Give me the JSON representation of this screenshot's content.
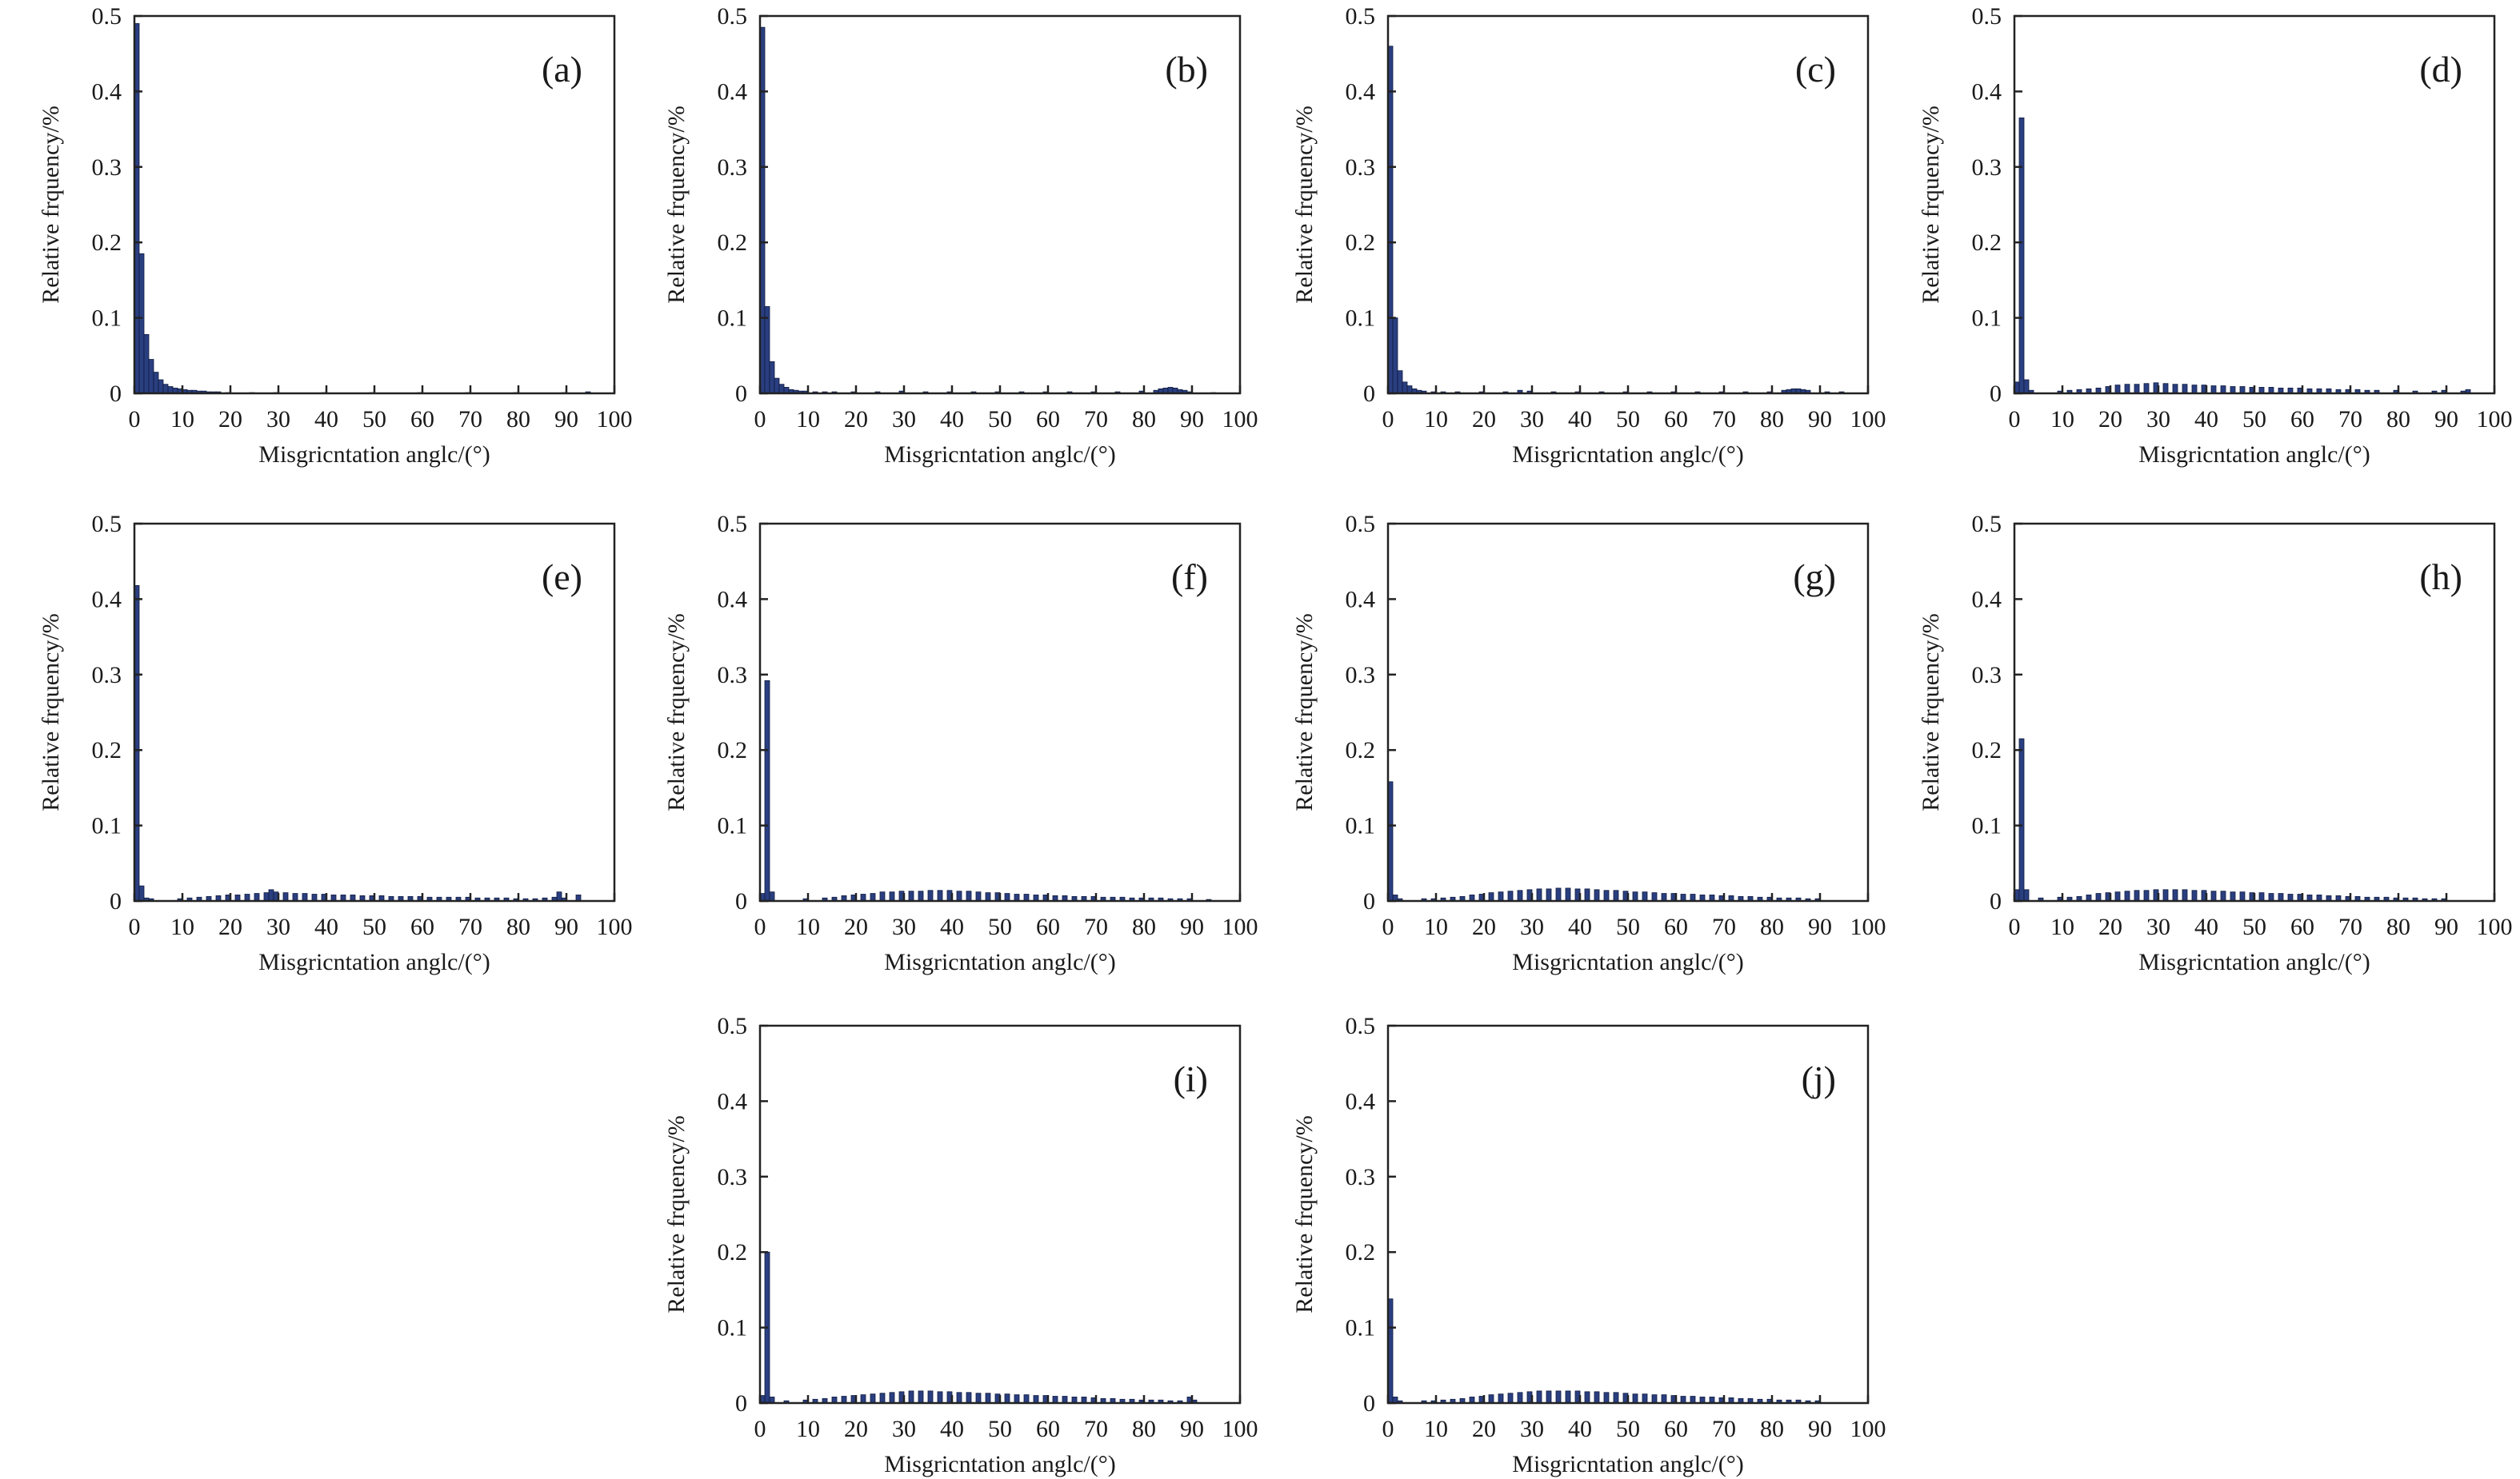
{
  "figure": {
    "bar_color": "#2a3f80",
    "bar_edge_color": "#0f1a3d"
  },
  "chart_data": [
    {
      "type": "bar",
      "panel": "(a)",
      "xlabel": "Misgricntation anglc/(°)",
      "ylabel": "Relative frquency/%",
      "xlim": [
        0,
        100
      ],
      "ylim": [
        0,
        0.5
      ],
      "xticks": [
        "0",
        "10",
        "20",
        "30",
        "40",
        "50",
        "60",
        "70",
        "80",
        "90",
        "100"
      ],
      "yticks": [
        "0",
        "0.1",
        "0.2",
        "0.3",
        "0.4",
        "0.5"
      ],
      "bin_width": 1,
      "x": [
        1,
        2,
        3,
        4,
        5,
        6,
        7,
        8,
        9,
        10,
        11,
        12,
        13,
        14,
        15,
        16,
        17,
        18,
        20,
        25,
        30,
        40,
        50,
        60,
        70,
        80,
        90,
        95
      ],
      "values": [
        0.49,
        0.185,
        0.078,
        0.045,
        0.028,
        0.018,
        0.012,
        0.009,
        0.007,
        0.006,
        0.005,
        0.004,
        0.004,
        0.003,
        0.003,
        0.002,
        0.002,
        0.002,
        0.001,
        0.001,
        0.001,
        0.001,
        0.001,
        0.001,
        0.001,
        0.001,
        0.001,
        0.002
      ]
    },
    {
      "type": "bar",
      "panel": "(b)",
      "xlabel": "Misgricntation anglc/(°)",
      "ylabel": "Relative frquency/%",
      "xlim": [
        0,
        100
      ],
      "ylim": [
        0,
        0.5
      ],
      "xticks": [
        "0",
        "10",
        "20",
        "30",
        "40",
        "50",
        "60",
        "70",
        "80",
        "90",
        "100"
      ],
      "yticks": [
        "0",
        "0.1",
        "0.2",
        "0.3",
        "0.4",
        "0.5"
      ],
      "bin_width": 1,
      "x": [
        1,
        2,
        3,
        4,
        5,
        6,
        7,
        8,
        9,
        10,
        12,
        14,
        16,
        20,
        25,
        30,
        35,
        40,
        45,
        50,
        55,
        60,
        65,
        70,
        75,
        80,
        83,
        84,
        85,
        86,
        87,
        88,
        89,
        90,
        95
      ],
      "values": [
        0.485,
        0.115,
        0.042,
        0.02,
        0.012,
        0.008,
        0.005,
        0.004,
        0.003,
        0.003,
        0.002,
        0.002,
        0.002,
        0.002,
        0.002,
        0.003,
        0.002,
        0.002,
        0.002,
        0.002,
        0.002,
        0.002,
        0.002,
        0.002,
        0.002,
        0.003,
        0.004,
        0.006,
        0.007,
        0.008,
        0.007,
        0.005,
        0.004,
        0.002,
        0.001
      ]
    },
    {
      "type": "bar",
      "panel": "(c)",
      "xlabel": "Misgricntation anglc/(°)",
      "ylabel": "Relative frquency/%",
      "xlim": [
        0,
        100
      ],
      "ylim": [
        0,
        0.5
      ],
      "xticks": [
        "0",
        "10",
        "20",
        "30",
        "40",
        "50",
        "60",
        "70",
        "80",
        "90",
        "100"
      ],
      "yticks": [
        "0",
        "0.1",
        "0.2",
        "0.3",
        "0.4",
        "0.5"
      ],
      "bin_width": 1,
      "x": [
        1,
        2,
        3,
        4,
        5,
        6,
        7,
        8,
        10,
        12,
        15,
        20,
        25,
        28,
        30,
        35,
        40,
        45,
        50,
        55,
        60,
        65,
        70,
        75,
        80,
        83,
        84,
        85,
        86,
        87,
        88,
        92,
        95
      ],
      "values": [
        0.46,
        0.1,
        0.03,
        0.015,
        0.01,
        0.006,
        0.004,
        0.003,
        0.002,
        0.002,
        0.002,
        0.002,
        0.002,
        0.004,
        0.003,
        0.002,
        0.002,
        0.002,
        0.002,
        0.002,
        0.002,
        0.002,
        0.002,
        0.002,
        0.002,
        0.004,
        0.005,
        0.006,
        0.006,
        0.005,
        0.004,
        0.002,
        0.002
      ]
    },
    {
      "type": "bar",
      "panel": "(d)",
      "xlabel": "Misgricntation anglc/(°)",
      "ylabel": "Relative frquency/%",
      "xlim": [
        0,
        100
      ],
      "ylim": [
        0,
        0.5
      ],
      "xticks": [
        "0",
        "10",
        "20",
        "30",
        "40",
        "50",
        "60",
        "70",
        "80",
        "90",
        "100"
      ],
      "yticks": [
        "0",
        "0.1",
        "0.2",
        "0.3",
        "0.4",
        "0.5"
      ],
      "bin_width": 1,
      "x": [
        1,
        2,
        3,
        4,
        10,
        12,
        14,
        16,
        18,
        20,
        22,
        24,
        26,
        28,
        30,
        32,
        34,
        36,
        38,
        40,
        42,
        44,
        46,
        48,
        50,
        52,
        54,
        56,
        58,
        60,
        62,
        64,
        66,
        68,
        70,
        72,
        74,
        76,
        80,
        84,
        88,
        90,
        94,
        95
      ],
      "values": [
        0.015,
        0.365,
        0.018,
        0.004,
        0.003,
        0.004,
        0.005,
        0.006,
        0.007,
        0.009,
        0.011,
        0.012,
        0.012,
        0.013,
        0.014,
        0.013,
        0.012,
        0.012,
        0.011,
        0.011,
        0.01,
        0.01,
        0.009,
        0.009,
        0.008,
        0.008,
        0.008,
        0.007,
        0.007,
        0.007,
        0.006,
        0.006,
        0.006,
        0.005,
        0.005,
        0.005,
        0.004,
        0.004,
        0.004,
        0.003,
        0.003,
        0.004,
        0.003,
        0.005
      ]
    },
    {
      "type": "bar",
      "panel": "(e)",
      "xlabel": "Misgricntation anglc/(°)",
      "ylabel": "Relative frquency/%",
      "xlim": [
        0,
        100
      ],
      "ylim": [
        0,
        0.5
      ],
      "xticks": [
        "0",
        "10",
        "20",
        "30",
        "40",
        "50",
        "60",
        "70",
        "80",
        "90",
        "100"
      ],
      "yticks": [
        "0",
        "0.1",
        "0.2",
        "0.3",
        "0.4",
        "0.5"
      ],
      "bin_width": 1,
      "x": [
        1,
        2,
        3,
        4,
        10,
        12,
        14,
        16,
        18,
        20,
        22,
        24,
        26,
        28,
        29,
        30,
        32,
        34,
        36,
        38,
        40,
        42,
        44,
        46,
        48,
        50,
        52,
        54,
        56,
        58,
        60,
        62,
        64,
        66,
        68,
        70,
        72,
        74,
        76,
        78,
        80,
        82,
        84,
        86,
        88,
        89,
        90,
        93
      ],
      "values": [
        0.418,
        0.02,
        0.004,
        0.003,
        0.003,
        0.004,
        0.005,
        0.006,
        0.007,
        0.008,
        0.008,
        0.009,
        0.01,
        0.011,
        0.015,
        0.012,
        0.011,
        0.01,
        0.01,
        0.009,
        0.009,
        0.008,
        0.008,
        0.008,
        0.007,
        0.007,
        0.007,
        0.006,
        0.006,
        0.006,
        0.006,
        0.005,
        0.005,
        0.005,
        0.005,
        0.005,
        0.004,
        0.004,
        0.004,
        0.004,
        0.003,
        0.003,
        0.003,
        0.004,
        0.005,
        0.012,
        0.004,
        0.008
      ]
    },
    {
      "type": "bar",
      "panel": "(f)",
      "xlabel": "Misgricntation anglc/(°)",
      "ylabel": "Relative frquency/%",
      "xlim": [
        0,
        100
      ],
      "ylim": [
        0,
        0.5
      ],
      "xticks": [
        "0",
        "10",
        "20",
        "30",
        "40",
        "50",
        "60",
        "70",
        "80",
        "90",
        "100"
      ],
      "yticks": [
        "0",
        "0.1",
        "0.2",
        "0.3",
        "0.4",
        "0.5"
      ],
      "bin_width": 1,
      "x": [
        1,
        2,
        3,
        10,
        14,
        16,
        18,
        20,
        22,
        24,
        26,
        28,
        30,
        32,
        34,
        36,
        38,
        40,
        42,
        44,
        46,
        48,
        50,
        52,
        54,
        56,
        58,
        60,
        62,
        64,
        66,
        68,
        70,
        72,
        74,
        76,
        78,
        80,
        82,
        84,
        86,
        88,
        90,
        94
      ],
      "values": [
        0.01,
        0.292,
        0.012,
        0.003,
        0.004,
        0.005,
        0.007,
        0.008,
        0.009,
        0.01,
        0.012,
        0.012,
        0.013,
        0.013,
        0.013,
        0.014,
        0.014,
        0.014,
        0.013,
        0.013,
        0.012,
        0.011,
        0.011,
        0.01,
        0.009,
        0.009,
        0.008,
        0.008,
        0.007,
        0.007,
        0.006,
        0.006,
        0.006,
        0.005,
        0.005,
        0.005,
        0.004,
        0.004,
        0.004,
        0.004,
        0.003,
        0.003,
        0.003,
        0.002
      ]
    },
    {
      "type": "bar",
      "panel": "(g)",
      "xlabel": "Misgricntation anglc/(°)",
      "ylabel": "Relative frquency/%",
      "xlim": [
        0,
        100
      ],
      "ylim": [
        0,
        0.5
      ],
      "xticks": [
        "0",
        "10",
        "20",
        "30",
        "40",
        "50",
        "60",
        "70",
        "80",
        "90",
        "100"
      ],
      "yticks": [
        "0",
        "0.1",
        "0.2",
        "0.3",
        "0.4",
        "0.5"
      ],
      "bin_width": 1,
      "x": [
        1,
        2,
        3,
        8,
        10,
        12,
        14,
        16,
        18,
        20,
        22,
        24,
        26,
        28,
        30,
        32,
        34,
        36,
        38,
        40,
        42,
        44,
        46,
        48,
        50,
        52,
        54,
        56,
        58,
        60,
        62,
        64,
        66,
        68,
        70,
        72,
        74,
        76,
        78,
        80,
        82,
        84,
        86,
        88,
        90
      ],
      "values": [
        0.158,
        0.008,
        0.003,
        0.003,
        0.003,
        0.004,
        0.005,
        0.006,
        0.008,
        0.009,
        0.011,
        0.012,
        0.013,
        0.014,
        0.015,
        0.016,
        0.016,
        0.017,
        0.017,
        0.016,
        0.016,
        0.015,
        0.014,
        0.014,
        0.013,
        0.012,
        0.012,
        0.011,
        0.01,
        0.01,
        0.009,
        0.009,
        0.008,
        0.008,
        0.007,
        0.007,
        0.006,
        0.006,
        0.005,
        0.005,
        0.004,
        0.004,
        0.004,
        0.003,
        0.003
      ]
    },
    {
      "type": "bar",
      "panel": "(h)",
      "xlabel": "Misgricntation anglc/(°)",
      "ylabel": "Relative frquency/%",
      "xlim": [
        0,
        100
      ],
      "ylim": [
        0,
        0.5
      ],
      "xticks": [
        "0",
        "10",
        "20",
        "30",
        "40",
        "50",
        "60",
        "70",
        "80",
        "90",
        "100"
      ],
      "yticks": [
        "0",
        "0.1",
        "0.2",
        "0.3",
        "0.4",
        "0.5"
      ],
      "bin_width": 1,
      "x": [
        1,
        2,
        3,
        6,
        10,
        12,
        14,
        16,
        18,
        20,
        22,
        24,
        26,
        28,
        30,
        32,
        34,
        36,
        38,
        40,
        42,
        44,
        46,
        48,
        50,
        52,
        54,
        56,
        58,
        60,
        62,
        64,
        66,
        68,
        70,
        72,
        74,
        76,
        78,
        80,
        82,
        84,
        86,
        88,
        90
      ],
      "values": [
        0.015,
        0.215,
        0.015,
        0.004,
        0.005,
        0.005,
        0.006,
        0.008,
        0.01,
        0.011,
        0.012,
        0.013,
        0.014,
        0.014,
        0.015,
        0.015,
        0.015,
        0.015,
        0.014,
        0.014,
        0.013,
        0.013,
        0.012,
        0.012,
        0.011,
        0.011,
        0.01,
        0.01,
        0.009,
        0.009,
        0.008,
        0.008,
        0.007,
        0.007,
        0.006,
        0.006,
        0.005,
        0.005,
        0.005,
        0.004,
        0.004,
        0.004,
        0.003,
        0.003,
        0.003
      ]
    },
    {
      "type": "bar",
      "panel": "(i)",
      "xlabel": "Misgricntation anglc/(°)",
      "ylabel": "Relative frquency/%",
      "xlim": [
        0,
        100
      ],
      "ylim": [
        0,
        0.5
      ],
      "xticks": [
        "0",
        "10",
        "20",
        "30",
        "40",
        "50",
        "60",
        "70",
        "80",
        "90",
        "100"
      ],
      "yticks": [
        "0",
        "0.1",
        "0.2",
        "0.3",
        "0.4",
        "0.5"
      ],
      "bin_width": 1,
      "x": [
        1,
        2,
        3,
        6,
        10,
        12,
        14,
        16,
        18,
        20,
        22,
        24,
        26,
        28,
        30,
        32,
        34,
        36,
        38,
        40,
        42,
        44,
        46,
        48,
        50,
        52,
        54,
        56,
        58,
        60,
        62,
        64,
        66,
        68,
        70,
        72,
        74,
        76,
        78,
        80,
        82,
        84,
        86,
        88,
        90,
        91
      ],
      "values": [
        0.01,
        0.2,
        0.008,
        0.003,
        0.004,
        0.005,
        0.006,
        0.008,
        0.009,
        0.01,
        0.011,
        0.012,
        0.013,
        0.014,
        0.015,
        0.016,
        0.016,
        0.016,
        0.015,
        0.015,
        0.014,
        0.014,
        0.013,
        0.013,
        0.012,
        0.012,
        0.011,
        0.011,
        0.01,
        0.01,
        0.009,
        0.009,
        0.008,
        0.008,
        0.007,
        0.006,
        0.006,
        0.005,
        0.005,
        0.004,
        0.004,
        0.004,
        0.003,
        0.003,
        0.008,
        0.004
      ]
    },
    {
      "type": "bar",
      "panel": "(j)",
      "xlabel": "Misgricntation anglc/(°)",
      "ylabel": "Relative frquency/%",
      "xlim": [
        0,
        100
      ],
      "ylim": [
        0,
        0.5
      ],
      "xticks": [
        "0",
        "10",
        "20",
        "30",
        "40",
        "50",
        "60",
        "70",
        "80",
        "90",
        "100"
      ],
      "yticks": [
        "0",
        "0.1",
        "0.2",
        "0.3",
        "0.4",
        "0.5"
      ],
      "bin_width": 1,
      "x": [
        1,
        2,
        3,
        8,
        10,
        12,
        14,
        16,
        18,
        20,
        22,
        24,
        26,
        28,
        30,
        32,
        34,
        36,
        38,
        40,
        42,
        44,
        46,
        48,
        50,
        52,
        54,
        56,
        58,
        60,
        62,
        64,
        66,
        68,
        70,
        72,
        74,
        76,
        78,
        80,
        82,
        84,
        86,
        88,
        90
      ],
      "values": [
        0.138,
        0.008,
        0.003,
        0.003,
        0.003,
        0.004,
        0.005,
        0.006,
        0.008,
        0.009,
        0.011,
        0.012,
        0.013,
        0.014,
        0.015,
        0.016,
        0.016,
        0.016,
        0.016,
        0.016,
        0.015,
        0.015,
        0.014,
        0.014,
        0.013,
        0.012,
        0.012,
        0.011,
        0.011,
        0.01,
        0.009,
        0.009,
        0.008,
        0.008,
        0.007,
        0.007,
        0.006,
        0.006,
        0.005,
        0.005,
        0.004,
        0.004,
        0.004,
        0.003,
        0.003
      ]
    }
  ]
}
